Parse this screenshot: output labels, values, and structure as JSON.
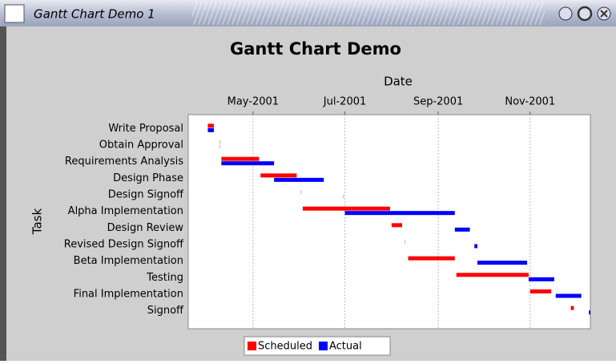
{
  "window": {
    "title": "Gantt Chart Demo 1"
  },
  "chart_data": {
    "type": "gantt",
    "title": "Gantt Chart Demo",
    "x_label": "Date",
    "y_label": "Task",
    "categories": [
      "Write Proposal",
      "Obtain Approval",
      "Requirements Analysis",
      "Design Phase",
      "Design Signoff",
      "Alpha Implementation",
      "Design Review",
      "Revised Design Signoff",
      "Beta Implementation",
      "Testing",
      "Final Implementation",
      "Signoff"
    ],
    "series": [
      {
        "name": "Scheduled",
        "color": "#ff0000",
        "values": [
          [
            "2001-04-01",
            "2001-04-05"
          ],
          [
            "2001-04-09",
            "2001-04-09"
          ],
          [
            "2001-04-10",
            "2001-05-05"
          ],
          [
            "2001-05-06",
            "2001-05-30"
          ],
          [
            "2001-06-02",
            "2001-06-02"
          ],
          [
            "2001-06-03",
            "2001-07-31"
          ],
          [
            "2001-08-01",
            "2001-08-08"
          ],
          [
            "2001-08-10",
            "2001-08-10"
          ],
          [
            "2001-08-12",
            "2001-09-12"
          ],
          [
            "2001-09-13",
            "2001-10-31"
          ],
          [
            "2001-11-01",
            "2001-11-15"
          ],
          [
            "2001-11-28",
            "2001-11-30"
          ]
        ]
      },
      {
        "name": "Actual",
        "color": "#0000ff",
        "values": [
          [
            "2001-04-01",
            "2001-04-05"
          ],
          [
            "2001-04-09",
            "2001-04-09"
          ],
          [
            "2001-04-10",
            "2001-05-15"
          ],
          [
            "2001-05-15",
            "2001-06-17"
          ],
          [
            "2001-06-30",
            "2001-06-30"
          ],
          [
            "2001-07-01",
            "2001-09-12"
          ],
          [
            "2001-09-12",
            "2001-09-22"
          ],
          [
            "2001-09-25",
            "2001-09-27"
          ],
          [
            "2001-09-27",
            "2001-10-30"
          ],
          [
            "2001-10-31",
            "2001-11-17"
          ],
          [
            "2001-11-18",
            "2001-12-05"
          ],
          [
            "2001-12-10",
            "2001-12-11"
          ]
        ]
      }
    ],
    "xlim": [
      "2001-03-19",
      "2001-12-11"
    ],
    "xticks": [
      {
        "value": "2001-05-01",
        "label": "May-2001"
      },
      {
        "value": "2001-07-01",
        "label": "Jul-2001"
      },
      {
        "value": "2001-09-01",
        "label": "Sep-2001"
      },
      {
        "value": "2001-11-01",
        "label": "Nov-2001"
      }
    ],
    "grid": true,
    "legend": "bottom"
  }
}
